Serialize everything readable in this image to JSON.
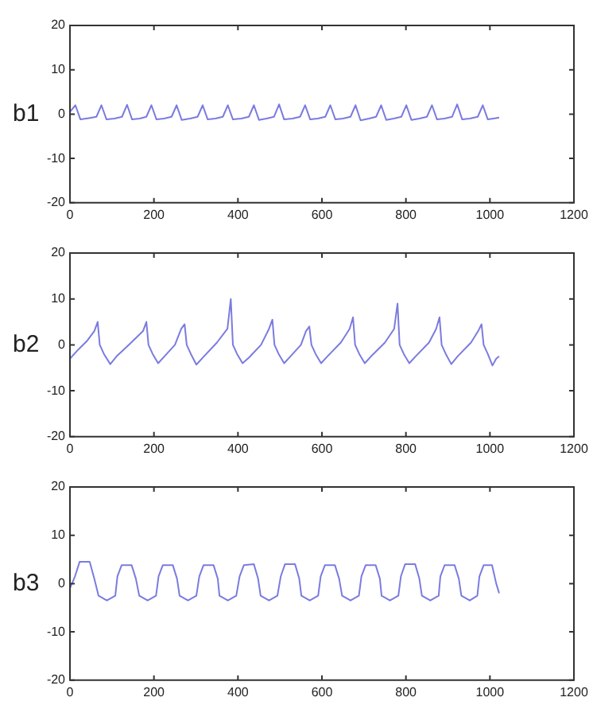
{
  "chart_data": [
    {
      "type": "line",
      "ylabel": "b1",
      "xlim": [
        0,
        1200
      ],
      "xticks": [
        0,
        200,
        400,
        600,
        800,
        1000,
        1200
      ],
      "ylim": [
        -20,
        20
      ],
      "yticks": [
        -20,
        -10,
        0,
        10,
        20
      ],
      "grid": false,
      "legend": false,
      "marker": "none",
      "series": [
        {
          "color": "#7b7be0",
          "x": [
            0,
            13,
            25,
            45,
            63,
            75,
            87,
            106,
            124,
            136,
            148,
            166,
            182,
            194,
            206,
            224,
            242,
            254,
            266,
            286,
            304,
            316,
            328,
            346,
            364,
            376,
            388,
            408,
            426,
            438,
            450,
            468,
            486,
            498,
            510,
            530,
            548,
            560,
            572,
            590,
            608,
            620,
            632,
            650,
            668,
            680,
            692,
            712,
            729,
            741,
            753,
            771,
            789,
            801,
            813,
            832,
            850,
            862,
            874,
            892,
            910,
            922,
            934,
            952,
            971,
            983,
            995,
            1008,
            1022
          ],
          "values": [
            0.5,
            2,
            -1.2,
            -0.9,
            -0.6,
            2,
            -1.2,
            -1,
            -0.6,
            2.1,
            -1.2,
            -1,
            -0.6,
            2,
            -1.2,
            -1,
            -0.6,
            2,
            -1.3,
            -1,
            -0.6,
            2,
            -1.2,
            -1,
            -0.6,
            2,
            -1.2,
            -1,
            -0.6,
            2,
            -1.3,
            -1,
            -0.6,
            2.2,
            -1.2,
            -1,
            -0.6,
            2,
            -1.2,
            -1,
            -0.6,
            2,
            -1.2,
            -1,
            -0.6,
            2,
            -1.4,
            -1,
            -0.6,
            2,
            -1.3,
            -1,
            -0.6,
            2,
            -1.3,
            -1,
            -0.6,
            2,
            -1.2,
            -1,
            -0.6,
            2.2,
            -1.2,
            -1,
            -0.6,
            2,
            -1.2,
            -1,
            -0.8
          ]
        }
      ]
    },
    {
      "type": "line",
      "ylabel": "b2",
      "xlim": [
        0,
        1200
      ],
      "xticks": [
        0,
        200,
        400,
        600,
        800,
        1000,
        1200
      ],
      "ylim": [
        -20,
        20
      ],
      "yticks": [
        -20,
        -10,
        0,
        10,
        20
      ],
      "grid": false,
      "legend": false,
      "marker": "none",
      "series": [
        {
          "color": "#7b7be0",
          "x": [
            0,
            20,
            40,
            58,
            66,
            71,
            81,
            96,
            111,
            140,
            174,
            182,
            187,
            197,
            210,
            225,
            250,
            265,
            273,
            278,
            288,
            301,
            316,
            350,
            375,
            383,
            388,
            398,
            411,
            426,
            455,
            474,
            482,
            487,
            497,
            510,
            525,
            550,
            562,
            570,
            575,
            585,
            598,
            613,
            645,
            666,
            674,
            679,
            689,
            702,
            717,
            750,
            772,
            780,
            785,
            795,
            808,
            823,
            855,
            872,
            880,
            885,
            895,
            908,
            923,
            955,
            972,
            980,
            985,
            995,
            1006,
            1015,
            1022
          ],
          "values": [
            -3,
            -1,
            0.8,
            3,
            5,
            0,
            -2,
            -4.2,
            -2.5,
            0,
            3,
            5,
            0,
            -2,
            -4,
            -2.5,
            0,
            3.5,
            4.5,
            0,
            -2,
            -4.3,
            -2.8,
            0.5,
            3.5,
            10,
            0,
            -2,
            -4,
            -2.8,
            0,
            3.5,
            5.5,
            0,
            -2,
            -4,
            -2.5,
            0,
            3,
            4,
            0,
            -2,
            -4,
            -2.5,
            0.5,
            3.5,
            6,
            0,
            -2,
            -4,
            -2.5,
            0.5,
            3.5,
            9,
            0,
            -2,
            -4,
            -2.5,
            0.5,
            3.5,
            6,
            0,
            -2,
            -4.2,
            -2.5,
            0.5,
            3,
            4.5,
            0,
            -2,
            -4.5,
            -3,
            -2.5
          ]
        }
      ]
    },
    {
      "type": "line",
      "ylabel": "b3",
      "xlim": [
        0,
        1200
      ],
      "xticks": [
        0,
        200,
        400,
        600,
        800,
        1000,
        1200
      ],
      "ylim": [
        -20,
        20
      ],
      "yticks": [
        -20,
        -10,
        0,
        10,
        20
      ],
      "grid": false,
      "legend": false,
      "marker": "none",
      "series": [
        {
          "color": "#7b7be0",
          "x": [
            0,
            12,
            23,
            47,
            58,
            68,
            88,
            108,
            113,
            123,
            147,
            157,
            165,
            185,
            205,
            211,
            221,
            245,
            255,
            261,
            281,
            301,
            308,
            318,
            342,
            352,
            356,
            376,
            396,
            404,
            414,
            438,
            448,
            454,
            474,
            494,
            502,
            512,
            536,
            546,
            551,
            571,
            591,
            597,
            607,
            631,
            641,
            648,
            668,
            688,
            694,
            704,
            728,
            738,
            742,
            762,
            782,
            788,
            798,
            822,
            832,
            838,
            858,
            878,
            882,
            892,
            916,
            926,
            932,
            952,
            970,
            975,
            985,
            1005,
            1015,
            1022
          ],
          "values": [
            -1,
            1.5,
            4.5,
            4.5,
            1,
            -2.5,
            -3.5,
            -2.5,
            1.5,
            3.8,
            3.8,
            1,
            -2.5,
            -3.5,
            -2.5,
            1.5,
            3.8,
            3.8,
            1,
            -2.5,
            -3.5,
            -2.5,
            1.5,
            3.8,
            3.8,
            1,
            -2.5,
            -3.5,
            -2.5,
            1.5,
            3.8,
            4,
            1,
            -2.5,
            -3.5,
            -2.5,
            1.5,
            4,
            4,
            1,
            -2.5,
            -3.5,
            -2.5,
            1.5,
            3.8,
            3.8,
            1,
            -2.5,
            -3.5,
            -2.5,
            1.5,
            3.8,
            3.8,
            1,
            -2.5,
            -3.5,
            -2.5,
            1.5,
            4,
            4,
            1,
            -2.5,
            -3.5,
            -2.5,
            1.5,
            3.8,
            3.8,
            1,
            -2.5,
            -3.5,
            -2.5,
            1.5,
            3.8,
            3.8,
            0,
            -2
          ]
        }
      ]
    }
  ]
}
